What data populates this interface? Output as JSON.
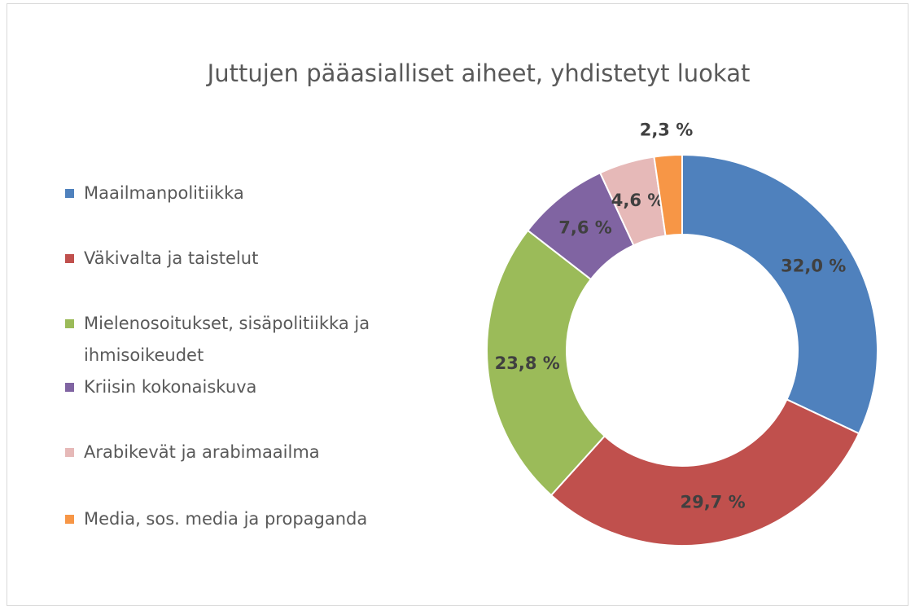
{
  "chart_data": {
    "type": "donut",
    "title": "Juttujen pääasialliset aiheet, yhdistetyt luokat",
    "categories": [
      "Maailmanpolitiikka",
      "Väkivalta ja taistelut",
      "Mielenosoitukset, sisäpolitiikka ja ihmisoikeudet",
      "Kriisin kokonaiskuva",
      "Arabikevät ja arabimaailma",
      "Media, sos. media ja propaganda"
    ],
    "values": [
      32.0,
      29.7,
      23.8,
      7.6,
      4.6,
      2.3
    ],
    "value_labels": [
      "32,0 %",
      "29,7 %",
      "23,8 %",
      "7,6 %",
      "4,6 %",
      "2,3 %"
    ],
    "colors": [
      "#4f81bd",
      "#c0504d",
      "#9bbb59",
      "#8064a2",
      "#e6b9b8",
      "#f79646"
    ],
    "legend": "left"
  }
}
